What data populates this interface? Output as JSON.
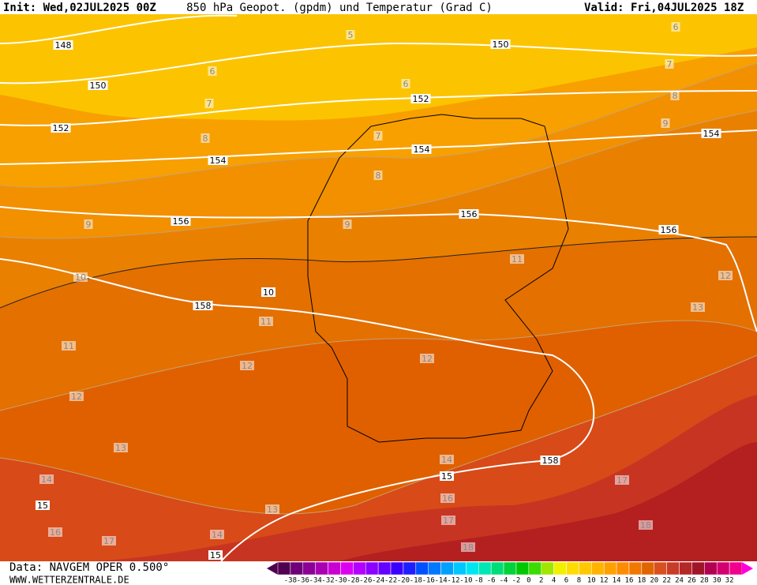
{
  "header": {
    "init": "Init: Wed,02JUL2025 00Z",
    "title": "850 hPa Geopot. (gpdm) und Temperatur (Grad C)",
    "valid": "Valid: Fri,04JUL2025 18Z"
  },
  "geopotential_labels": [
    "148",
    "150",
    "152",
    "154",
    "156",
    "158",
    "150",
    "152",
    "154",
    "154",
    "156",
    "156",
    "158"
  ],
  "temperature_labels": [
    "5",
    "6",
    "6",
    "6",
    "7",
    "7",
    "7",
    "8",
    "8",
    "8",
    "9",
    "9",
    "9",
    "10",
    "10",
    "11",
    "11",
    "11",
    "12",
    "12",
    "12",
    "12",
    "13",
    "13",
    "13",
    "14",
    "14",
    "14",
    "15",
    "15",
    "15",
    "16",
    "16",
    "17",
    "17",
    "17",
    "18",
    "18"
  ],
  "footer": {
    "data": "Data: NAVGEM OPER 0.500°",
    "site": "WWW.WETTERZENTRALE.DE"
  },
  "colorbar": {
    "labels": [
      -38,
      -36,
      -34,
      -32,
      -30,
      -28,
      -26,
      -24,
      -22,
      -20,
      -18,
      -16,
      -14,
      -12,
      -10,
      -8,
      -6,
      -4,
      -2,
      0,
      2,
      4,
      6,
      8,
      10,
      12,
      14,
      16,
      18,
      20,
      22,
      24,
      26,
      28,
      30,
      32
    ],
    "colors": [
      "#500050",
      "#6e0078",
      "#8c0096",
      "#aa00b4",
      "#c800d2",
      "#dc00f0",
      "#b400ff",
      "#8c00ff",
      "#6400ff",
      "#3c00ff",
      "#1e1eff",
      "#0050ff",
      "#0078ff",
      "#00a0ff",
      "#00c8ff",
      "#00e6f0",
      "#00e6b4",
      "#00dc78",
      "#00d23c",
      "#00c800",
      "#3cdc00",
      "#a0e600",
      "#f0f000",
      "#ffdc00",
      "#ffc800",
      "#ffb400",
      "#ffa000",
      "#ff8c00",
      "#f07800",
      "#e06400",
      "#d85020",
      "#c83c28",
      "#b42828",
      "#a01428",
      "#b40050",
      "#d2006e",
      "#f0008c"
    ]
  }
}
